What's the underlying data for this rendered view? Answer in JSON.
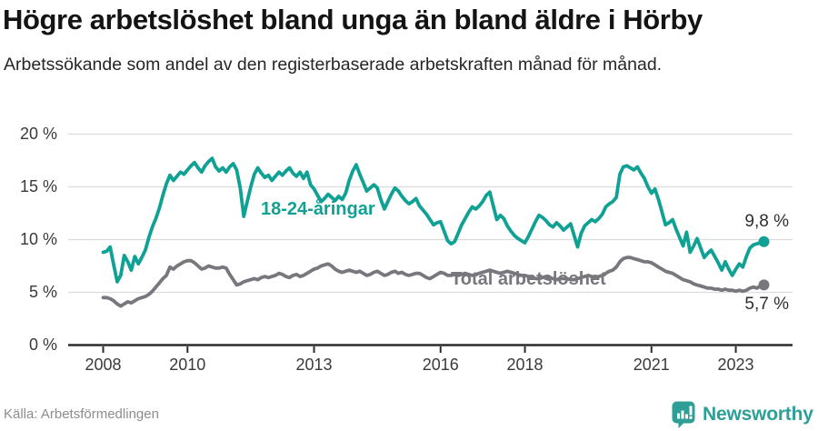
{
  "chart_data": {
    "type": "line",
    "title": "Högre arbetslöshet bland unga än bland äldre i Hörby",
    "subtitle": "Arbetssökande som andel av den registerbaserade arbetskraften månad för månad.",
    "x_frequency": "monthly",
    "x_start": "2008-01",
    "x_end": "2023-09",
    "x_tick_years": [
      2008,
      2010,
      2013,
      2016,
      2018,
      2021,
      2023
    ],
    "y_ticks": [
      {
        "value": 0,
        "label": "0 %"
      },
      {
        "value": 5,
        "label": "5 %"
      },
      {
        "value": 10,
        "label": "10 %"
      },
      {
        "value": 15,
        "label": "15 %"
      },
      {
        "value": 20,
        "label": "20 %"
      }
    ],
    "ylim": [
      0,
      20
    ],
    "grid": "horizontal",
    "legend": "inline-line-labels",
    "series": [
      {
        "name": "18-24-åringar",
        "color": "#10A195",
        "end_label": "9,8 %",
        "end_value": 9.8,
        "values": [
          8.8,
          8.9,
          9.3,
          7.6,
          6.0,
          6.6,
          8.5,
          7.9,
          7.1,
          8.4,
          7.7,
          8.3,
          9.0,
          10.2,
          11.2,
          12.0,
          13.0,
          14.2,
          15.3,
          16.1,
          15.6,
          16.0,
          16.4,
          16.2,
          16.6,
          17.0,
          17.3,
          16.8,
          16.4,
          17.0,
          17.4,
          17.7,
          16.9,
          16.5,
          16.8,
          16.4,
          16.9,
          17.2,
          16.6,
          14.9,
          12.2,
          13.6,
          15.0,
          16.2,
          16.8,
          16.3,
          15.9,
          16.1,
          15.6,
          16.0,
          16.4,
          16.1,
          16.5,
          16.8,
          16.3,
          16.0,
          16.4,
          15.8,
          16.4,
          15.2,
          14.8,
          14.2,
          13.6,
          13.9,
          14.3,
          14.0,
          13.7,
          14.1,
          13.8,
          14.4,
          15.6,
          16.5,
          17.1,
          16.2,
          15.4,
          14.6,
          14.9,
          15.2,
          14.9,
          13.8,
          12.9,
          13.6,
          14.3,
          14.9,
          14.6,
          14.1,
          13.7,
          13.4,
          13.6,
          13.9,
          13.2,
          12.8,
          12.4,
          11.9,
          11.4,
          11.6,
          11.7,
          10.8,
          9.9,
          9.6,
          9.8,
          10.6,
          11.4,
          12.0,
          12.6,
          13.1,
          12.9,
          13.2,
          13.6,
          14.2,
          14.5,
          13.2,
          11.9,
          12.3,
          12.0,
          11.3,
          10.8,
          10.4,
          10.1,
          9.9,
          9.7,
          10.3,
          11.0,
          11.7,
          12.3,
          12.1,
          11.8,
          11.4,
          11.2,
          11.6,
          11.3,
          10.9,
          11.2,
          11.5,
          10.4,
          9.3,
          10.6,
          11.3,
          11.6,
          11.9,
          11.7,
          12.0,
          12.4,
          13.1,
          13.4,
          13.6,
          14.0,
          16.2,
          16.9,
          17.0,
          16.8,
          16.6,
          16.9,
          16.3,
          15.8,
          15.0,
          14.4,
          14.8,
          13.8,
          12.6,
          11.4,
          11.6,
          11.9,
          11.0,
          10.2,
          9.4,
          10.7,
          8.8,
          9.4,
          10.1,
          9.2,
          8.3,
          8.7,
          9.0,
          8.4,
          7.8,
          7.1,
          7.9,
          7.2,
          6.6,
          7.2,
          7.7,
          7.4,
          8.4,
          9.2,
          9.5,
          9.6,
          9.7,
          9.8
        ]
      },
      {
        "name": "Total arbetslöshet",
        "color": "#77777D",
        "end_label": "5,7 %",
        "end_value": 5.7,
        "values": [
          4.5,
          4.5,
          4.4,
          4.2,
          3.9,
          3.7,
          3.9,
          4.1,
          4.0,
          4.2,
          4.4,
          4.5,
          4.6,
          4.8,
          5.1,
          5.5,
          5.9,
          6.3,
          6.6,
          7.4,
          7.2,
          7.5,
          7.7,
          7.9,
          8.0,
          8.0,
          7.8,
          7.5,
          7.2,
          7.3,
          7.5,
          7.4,
          7.3,
          7.3,
          7.4,
          7.3,
          6.7,
          6.2,
          5.7,
          5.8,
          6.0,
          6.1,
          6.2,
          6.3,
          6.2,
          6.4,
          6.5,
          6.4,
          6.5,
          6.6,
          6.8,
          6.7,
          6.5,
          6.4,
          6.6,
          6.7,
          6.5,
          6.6,
          6.8,
          7.0,
          7.2,
          7.3,
          7.5,
          7.6,
          7.7,
          7.5,
          7.2,
          7.0,
          6.9,
          7.0,
          7.1,
          7.0,
          6.9,
          7.0,
          6.8,
          6.6,
          6.7,
          6.9,
          7.0,
          6.8,
          6.6,
          6.7,
          6.9,
          7.0,
          6.8,
          6.9,
          6.7,
          6.6,
          6.7,
          6.8,
          6.8,
          6.6,
          6.4,
          6.3,
          6.5,
          6.7,
          6.9,
          6.8,
          6.6,
          6.6,
          6.7,
          6.6,
          6.7,
          6.8,
          6.7,
          6.6,
          6.7,
          6.8,
          6.9,
          7.0,
          7.1,
          7.0,
          6.9,
          6.8,
          6.9,
          7.0,
          6.9,
          6.8,
          6.7,
          6.6,
          6.6,
          6.5,
          6.4,
          6.3,
          6.3,
          6.4,
          6.5,
          6.4,
          6.3,
          6.2,
          6.3,
          6.3,
          6.3,
          6.2,
          6.2,
          6.3,
          6.4,
          6.5,
          6.6,
          6.5,
          6.4,
          6.5,
          6.6,
          6.8,
          7.0,
          7.1,
          7.4,
          7.9,
          8.2,
          8.3,
          8.3,
          8.2,
          8.1,
          8.0,
          7.9,
          7.9,
          7.8,
          7.6,
          7.4,
          7.2,
          7.0,
          6.9,
          6.8,
          6.6,
          6.4,
          6.2,
          6.1,
          6.0,
          5.8,
          5.7,
          5.6,
          5.5,
          5.4,
          5.4,
          5.3,
          5.3,
          5.2,
          5.3,
          5.2,
          5.2,
          5.1,
          5.2,
          5.1,
          5.2,
          5.4,
          5.5,
          5.4,
          5.6,
          5.7
        ]
      }
    ]
  },
  "footer": {
    "source": "Källa: Arbetsförmedlingen",
    "brand": "Newsworthy",
    "brand_icon": "chart-speech-bubble-icon",
    "brand_color": "#2D9F96"
  },
  "colors": {
    "grid": "#DCDCDC",
    "axis": "#2B2B2B",
    "tick_text": "#3A3A3A",
    "title_text": "#141414",
    "subtitle_text": "#262626",
    "source_text": "#8D8D8D"
  }
}
